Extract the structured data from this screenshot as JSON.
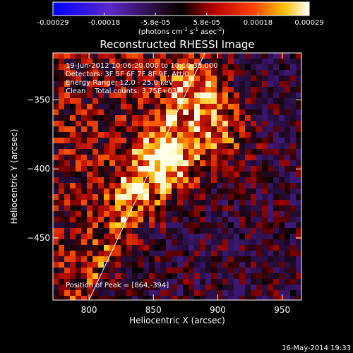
{
  "colorbar": {
    "ticks": [
      "-0.00029",
      "-0.00018",
      "-5.8e-05",
      "5.8e-05",
      "0.00018",
      "0.00029"
    ],
    "unit_base": "(photons cm",
    "unit_sup1": "-2",
    "unit_mid": " s",
    "unit_sup2": "-1",
    "unit_mid2": " asec",
    "unit_sup3": "-2",
    "unit_end": ")",
    "colormap": "black-red-yellow-white (negative: blue-purple)"
  },
  "chart_data": {
    "type": "heatmap",
    "title": "Reconstructed RHESSI Image",
    "xlabel": "Heliocentric X (arcsec)",
    "ylabel": "Heliocentric Y (arcsec)",
    "xlim": [
      772,
      965
    ],
    "ylim": [
      -495,
      -316
    ],
    "x_ticks": [
      800,
      850,
      900,
      950
    ],
    "y_ticks": [
      -350,
      -400,
      -450
    ],
    "x_tick_labels": [
      "800",
      "850",
      "900",
      "950"
    ],
    "y_tick_labels": [
      "-350",
      "-400",
      "-450"
    ],
    "value_range": [
      -0.00029,
      0.00029
    ],
    "peak": [
      864,
      -394
    ],
    "limb_line": {
      "x": [
        800,
        890
      ],
      "y": [
        -495,
        -316
      ]
    },
    "sources": [
      {
        "x": 864,
        "y": -394,
        "intensity": 1.0
      },
      {
        "x": 888,
        "y": -350,
        "intensity": 0.75
      },
      {
        "x": 903,
        "y": -378,
        "intensity": 0.5
      },
      {
        "x": 840,
        "y": -420,
        "intensity": 0.45
      }
    ],
    "annotations": {
      "time_range": "19-Jun-2012 10:06:20.000 to 10:10:38.000",
      "detectors": "Detectors: 3F 5F 6F 7F 8F 9F, Att/0",
      "energy": "Energy Range: 12.0 - 25.0 keV",
      "clean_counts": "Clean    Total counts: 3.75E+03",
      "peak_position": "Position of Peak = [864,-394]"
    }
  },
  "footer": {
    "timestamp": "16-May-2014 19:33"
  }
}
